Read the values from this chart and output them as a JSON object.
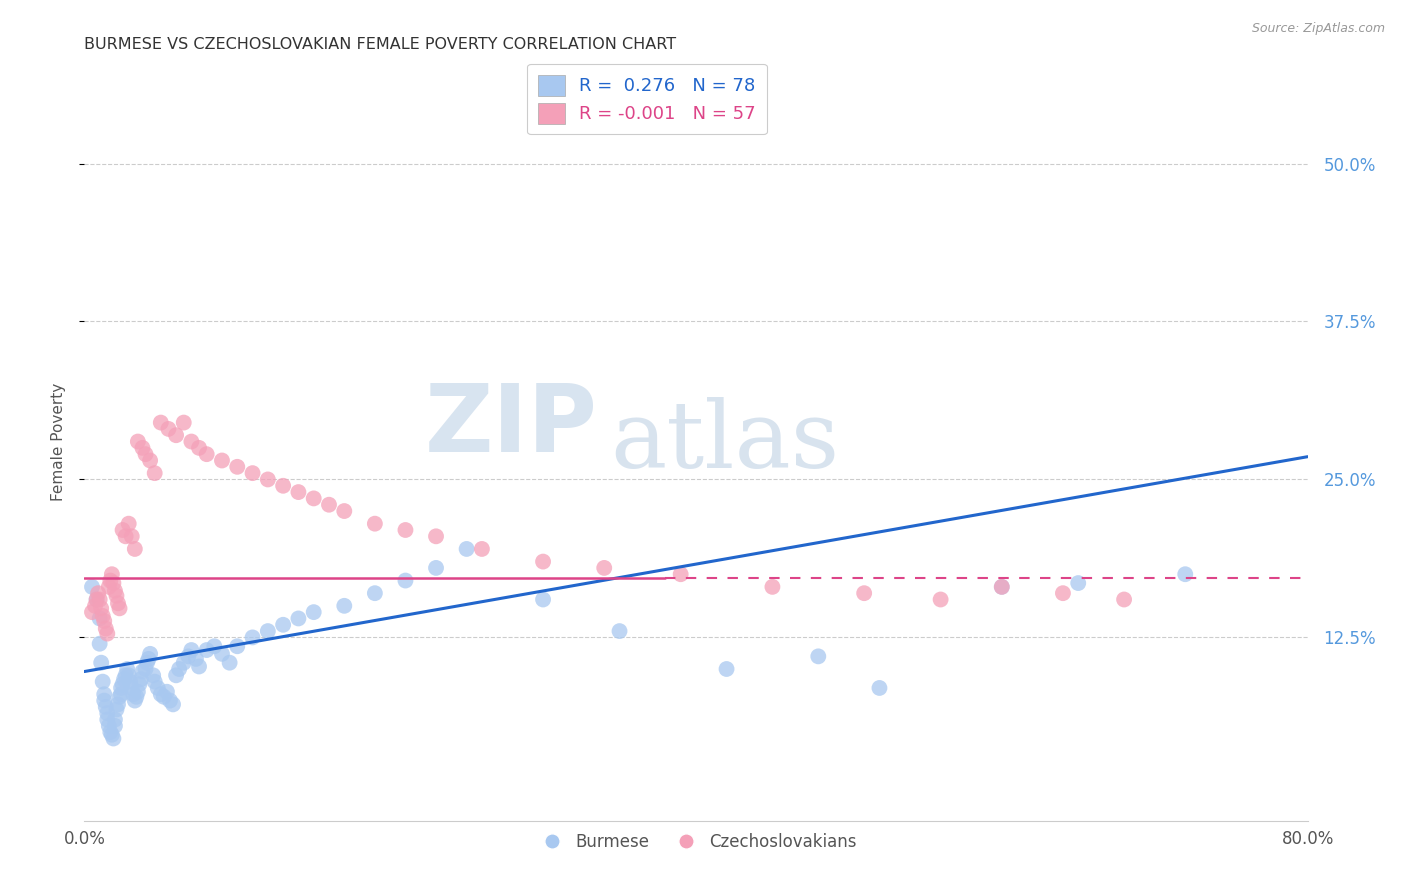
{
  "title": "BURMESE VS CZECHOSLOVAKIAN FEMALE POVERTY CORRELATION CHART",
  "source": "Source: ZipAtlas.com",
  "ylabel": "Female Poverty",
  "ytick_labels": [
    "12.5%",
    "25.0%",
    "37.5%",
    "50.0%"
  ],
  "ytick_values": [
    0.125,
    0.25,
    0.375,
    0.5
  ],
  "xlim": [
    0.0,
    0.8
  ],
  "ylim": [
    -0.02,
    0.58
  ],
  "legend_r_burmese": "0.276",
  "legend_n_burmese": "78",
  "legend_r_czech": "-0.001",
  "legend_n_czech": "57",
  "color_burmese": "#A8C8F0",
  "color_czech": "#F4A0B8",
  "color_line_burmese": "#2266CC",
  "color_line_czech": "#DD4488",
  "watermark_zip": "ZIP",
  "watermark_atlas": "atlas",
  "burmese_x": [
    0.005,
    0.008,
    0.01,
    0.01,
    0.011,
    0.012,
    0.013,
    0.013,
    0.014,
    0.015,
    0.015,
    0.016,
    0.017,
    0.018,
    0.019,
    0.02,
    0.02,
    0.021,
    0.022,
    0.023,
    0.024,
    0.024,
    0.025,
    0.026,
    0.027,
    0.028,
    0.029,
    0.03,
    0.031,
    0.032,
    0.033,
    0.034,
    0.035,
    0.036,
    0.037,
    0.038,
    0.04,
    0.041,
    0.042,
    0.043,
    0.045,
    0.046,
    0.048,
    0.05,
    0.052,
    0.054,
    0.056,
    0.058,
    0.06,
    0.062,
    0.065,
    0.068,
    0.07,
    0.073,
    0.075,
    0.08,
    0.085,
    0.09,
    0.095,
    0.1,
    0.11,
    0.12,
    0.13,
    0.14,
    0.15,
    0.17,
    0.19,
    0.21,
    0.23,
    0.25,
    0.3,
    0.35,
    0.42,
    0.48,
    0.52,
    0.6,
    0.65,
    0.72
  ],
  "burmese_y": [
    0.165,
    0.155,
    0.14,
    0.12,
    0.105,
    0.09,
    0.08,
    0.075,
    0.07,
    0.065,
    0.06,
    0.055,
    0.05,
    0.048,
    0.045,
    0.055,
    0.06,
    0.068,
    0.072,
    0.078,
    0.08,
    0.085,
    0.088,
    0.092,
    0.095,
    0.1,
    0.095,
    0.09,
    0.085,
    0.08,
    0.075,
    0.078,
    0.082,
    0.088,
    0.092,
    0.098,
    0.1,
    0.105,
    0.108,
    0.112,
    0.095,
    0.09,
    0.085,
    0.08,
    0.078,
    0.082,
    0.075,
    0.072,
    0.095,
    0.1,
    0.105,
    0.11,
    0.115,
    0.108,
    0.102,
    0.115,
    0.118,
    0.112,
    0.105,
    0.118,
    0.125,
    0.13,
    0.135,
    0.14,
    0.145,
    0.15,
    0.16,
    0.17,
    0.18,
    0.195,
    0.155,
    0.13,
    0.1,
    0.11,
    0.085,
    0.165,
    0.168,
    0.175
  ],
  "czech_x": [
    0.005,
    0.007,
    0.008,
    0.009,
    0.01,
    0.011,
    0.012,
    0.013,
    0.014,
    0.015,
    0.016,
    0.017,
    0.018,
    0.019,
    0.02,
    0.021,
    0.022,
    0.023,
    0.025,
    0.027,
    0.029,
    0.031,
    0.033,
    0.035,
    0.038,
    0.04,
    0.043,
    0.046,
    0.05,
    0.055,
    0.06,
    0.065,
    0.07,
    0.075,
    0.08,
    0.09,
    0.1,
    0.11,
    0.12,
    0.13,
    0.14,
    0.15,
    0.16,
    0.17,
    0.19,
    0.21,
    0.23,
    0.26,
    0.3,
    0.34,
    0.39,
    0.45,
    0.51,
    0.56,
    0.6,
    0.64,
    0.68
  ],
  "czech_y": [
    0.145,
    0.15,
    0.155,
    0.16,
    0.155,
    0.148,
    0.142,
    0.138,
    0.132,
    0.128,
    0.165,
    0.17,
    0.175,
    0.168,
    0.162,
    0.158,
    0.152,
    0.148,
    0.21,
    0.205,
    0.215,
    0.205,
    0.195,
    0.28,
    0.275,
    0.27,
    0.265,
    0.255,
    0.295,
    0.29,
    0.285,
    0.295,
    0.28,
    0.275,
    0.27,
    0.265,
    0.26,
    0.255,
    0.25,
    0.245,
    0.24,
    0.235,
    0.23,
    0.225,
    0.215,
    0.21,
    0.205,
    0.195,
    0.185,
    0.18,
    0.175,
    0.165,
    0.16,
    0.155,
    0.165,
    0.16,
    0.155
  ],
  "burmese_line_x0": 0.0,
  "burmese_line_x1": 0.8,
  "burmese_line_y0": 0.098,
  "burmese_line_y1": 0.268,
  "czech_line_x0": 0.0,
  "czech_line_x1": 0.62,
  "czech_line_y0": 0.172,
  "czech_line_y1": 0.172
}
